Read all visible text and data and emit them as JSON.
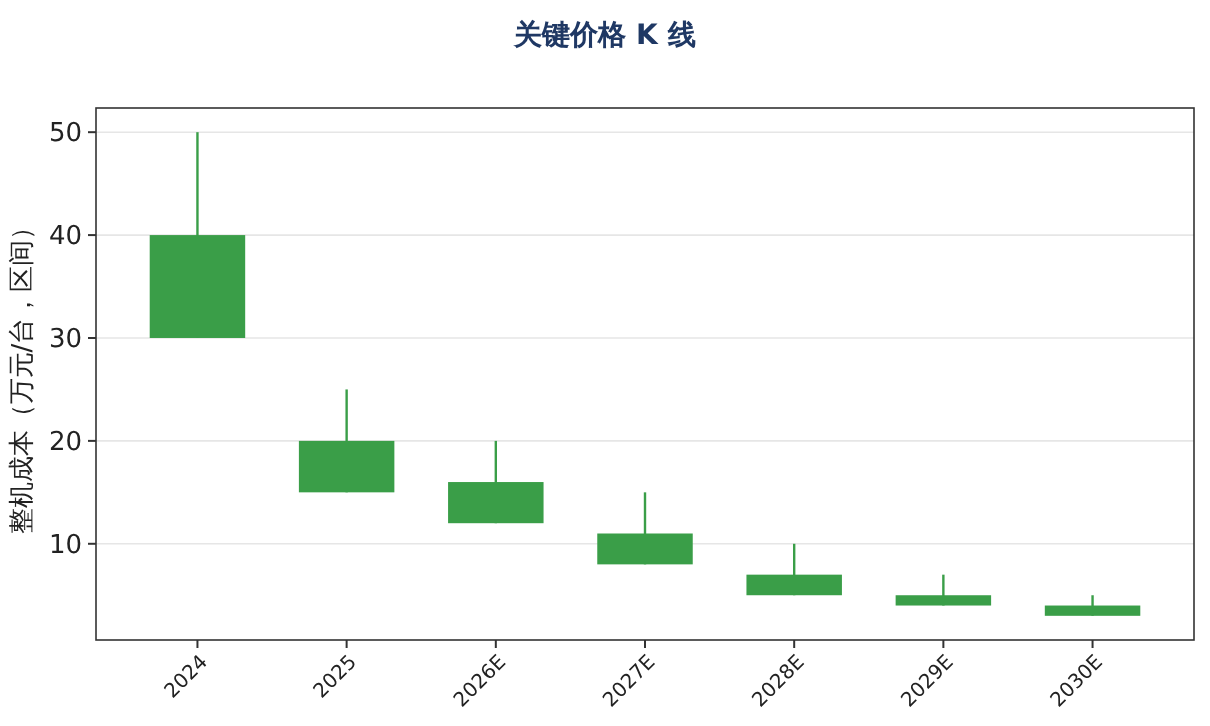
{
  "chart_data": {
    "type": "candlestick",
    "title": "关键价格 K 线",
    "ylabel": "整机成本（万元/台，区间）",
    "categories": [
      "2024",
      "2025",
      "2026E",
      "2027E",
      "2028E",
      "2029E",
      "2030E"
    ],
    "series": [
      {
        "color": "#3a9e48",
        "ohlc": [
          [
            40,
            50,
            30,
            30
          ],
          [
            20,
            25,
            15,
            15
          ],
          [
            16,
            20,
            12,
            12
          ],
          [
            11,
            15,
            8,
            8
          ],
          [
            7,
            10,
            5,
            5
          ],
          [
            5,
            7,
            4,
            4
          ],
          [
            4,
            5,
            3,
            3
          ]
        ]
      }
    ],
    "ylim": [
      0.65,
      52.35
    ],
    "yticks": [
      10,
      20,
      30,
      40,
      50
    ],
    "grid": "y"
  }
}
